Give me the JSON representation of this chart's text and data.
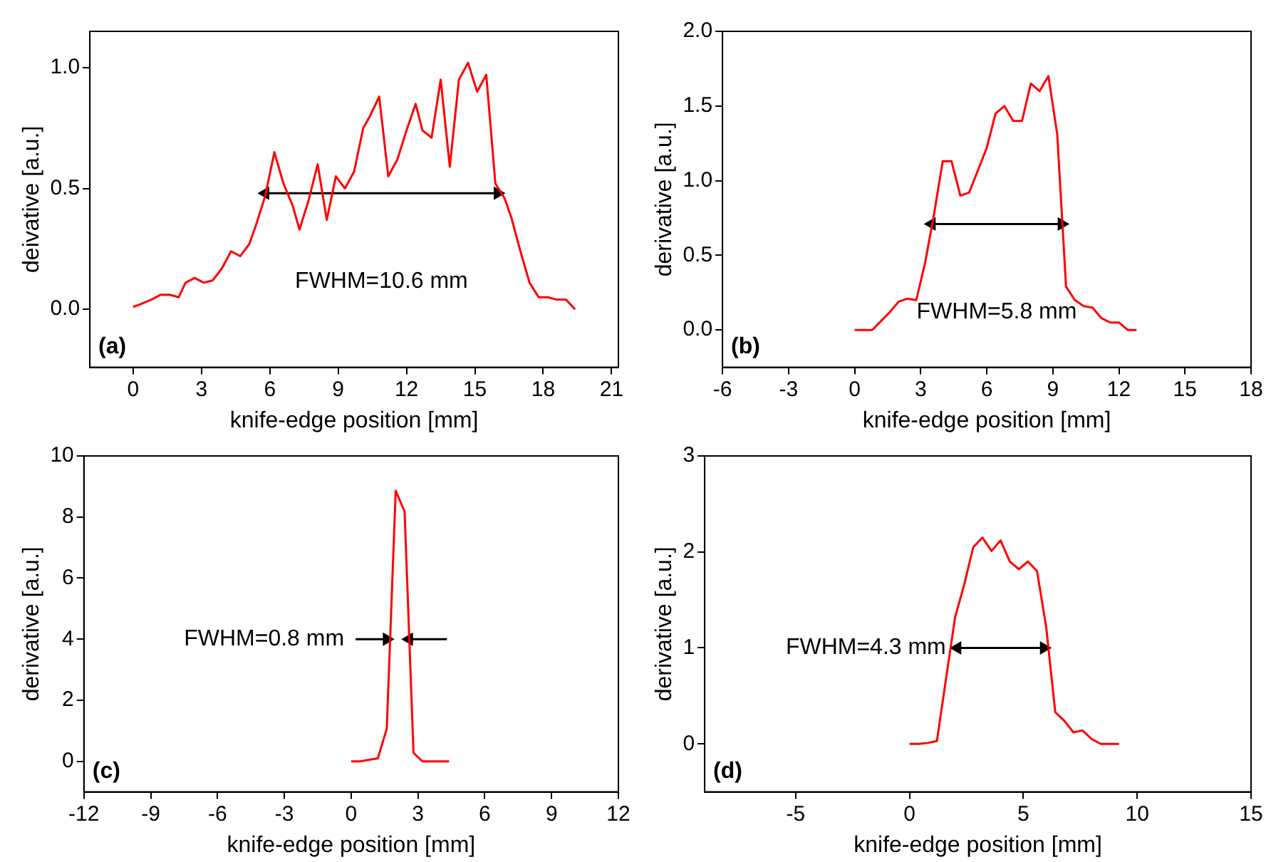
{
  "chart_data": [
    {
      "type": "line",
      "xlabel": "knife-edge position [mm]",
      "ylabel": "deivative [a.u.]",
      "xlim": [
        -1.9,
        21.3
      ],
      "ylim": [
        -0.24,
        1.15
      ],
      "xticks": [
        0,
        3,
        6,
        9,
        12,
        15,
        18,
        21
      ],
      "yticks": [
        {
          "value": 0,
          "label": "0.0"
        },
        {
          "value": 0.5,
          "label": "0.5"
        },
        {
          "value": 1,
          "label": "1.0"
        }
      ],
      "grid": false,
      "annotations": [
        "(a)",
        "FWHM=10.6 mm"
      ],
      "series": [
        {
          "color": "#ff0000",
          "x": [
            0,
            0.3,
            0.8,
            1.2,
            1.6,
            2.0,
            2.3,
            2.7,
            3.1,
            3.5,
            3.9,
            4.3,
            4.7,
            5.1,
            5.4,
            5.8,
            6.2,
            6.6,
            7.0,
            7.3,
            7.7,
            8.1,
            8.5,
            8.9,
            9.3,
            9.7,
            10.1,
            10.4,
            10.8,
            11.2,
            11.6,
            12.0,
            12.4,
            12.7,
            13.1,
            13.5,
            13.9,
            14.3,
            14.7,
            15.1,
            15.5,
            15.9,
            16.3,
            16.6,
            17.0,
            17.4,
            17.8,
            18.2,
            18.6,
            19.0,
            19.4
          ],
          "values": [
            0.01,
            0.02,
            0.04,
            0.06,
            0.06,
            0.05,
            0.11,
            0.13,
            0.11,
            0.12,
            0.17,
            0.24,
            0.22,
            0.27,
            0.35,
            0.47,
            0.65,
            0.52,
            0.43,
            0.33,
            0.45,
            0.6,
            0.37,
            0.55,
            0.5,
            0.57,
            0.75,
            0.8,
            0.88,
            0.55,
            0.62,
            0.74,
            0.85,
            0.74,
            0.71,
            0.95,
            0.59,
            0.95,
            1.02,
            0.9,
            0.97,
            0.52,
            0.46,
            0.38,
            0.24,
            0.11,
            0.05,
            0.05,
            0.04,
            0.04,
            0.0
          ]
        },
        {
          "color": "#000000",
          "marker": "triangle",
          "x": [
            5.8,
            16.0
          ],
          "values": [
            0.48,
            0.48
          ]
        }
      ]
    },
    {
      "type": "line",
      "xlabel": "knife-edge position [mm]",
      "ylabel": "derivative [a.u.]",
      "xlim": [
        -6,
        18
      ],
      "ylim": [
        -0.25,
        2.0
      ],
      "xticks": [
        -6,
        -3,
        0,
        3,
        6,
        9,
        12,
        15,
        18
      ],
      "yticks": [
        {
          "value": 0,
          "label": "0.0"
        },
        {
          "value": 0.5,
          "label": "0.5"
        },
        {
          "value": 1,
          "label": "1.0"
        },
        {
          "value": 1.5,
          "label": "1.5"
        },
        {
          "value": 2,
          "label": "2.0"
        }
      ],
      "grid": false,
      "annotations": [
        "(b)",
        "FWHM=5.8 mm"
      ],
      "series": [
        {
          "color": "#ff0000",
          "x": [
            0,
            0.4,
            0.8,
            1.2,
            1.6,
            2.0,
            2.4,
            2.8,
            3.2,
            3.6,
            4.0,
            4.4,
            4.8,
            5.2,
            5.6,
            6.0,
            6.4,
            6.8,
            7.2,
            7.6,
            8.0,
            8.4,
            8.8,
            9.2,
            9.6,
            10.0,
            10.4,
            10.8,
            11.2,
            11.6,
            12.0,
            12.4,
            12.8
          ],
          "values": [
            0,
            0,
            0,
            0.06,
            0.12,
            0.19,
            0.21,
            0.2,
            0.45,
            0.77,
            1.13,
            1.13,
            0.9,
            0.92,
            1.07,
            1.22,
            1.45,
            1.5,
            1.4,
            1.4,
            1.65,
            1.6,
            1.7,
            1.31,
            0.29,
            0.2,
            0.16,
            0.15,
            0.08,
            0.05,
            0.05,
            0,
            0
          ]
        },
        {
          "color": "#000000",
          "marker": "triangle",
          "x": [
            3.5,
            9.4
          ],
          "values": [
            0.71,
            0.71
          ]
        }
      ]
    },
    {
      "type": "line",
      "xlabel": "knife-edge position [mm]",
      "ylabel": "derivative [a.u.]",
      "xlim": [
        -12,
        12
      ],
      "ylim": [
        -1,
        10
      ],
      "xticks": [
        -12,
        -9,
        -6,
        -3,
        0,
        3,
        6,
        9,
        12
      ],
      "yticks": [
        0,
        2,
        4,
        6,
        8,
        10
      ],
      "grid": false,
      "annotations": [
        "(c)",
        "FWHM=0.8 mm"
      ],
      "series": [
        {
          "color": "#ff0000",
          "x": [
            0,
            0.4,
            0.8,
            1.2,
            1.6,
            2.0,
            2.4,
            2.8,
            3.2,
            3.6,
            4.0,
            4.4
          ],
          "values": [
            0,
            0,
            0.05,
            0.1,
            1.07,
            8.86,
            8.18,
            0.28,
            0,
            0,
            0,
            0
          ]
        },
        {
          "color": "#000000",
          "marker": "triangle",
          "x": [
            0.2,
            1.6,
            null,
            2.6,
            4.3
          ],
          "values": [
            4,
            4,
            null,
            4,
            4
          ]
        }
      ]
    },
    {
      "type": "line",
      "xlabel": "knife-edge position [mm]",
      "ylabel": "derivative [a.u.]",
      "xlim": [
        -9,
        15
      ],
      "ylim": [
        -0.5,
        3
      ],
      "xticks": [
        -5,
        0,
        5,
        10,
        15
      ],
      "yticks": [
        0,
        1,
        2,
        3
      ],
      "grid": false,
      "annotations": [
        "(d)",
        "FWHM=4.3 mm"
      ],
      "series": [
        {
          "color": "#ff0000",
          "x": [
            0,
            0.4,
            0.8,
            1.2,
            2.0,
            2.4,
            2.8,
            3.2,
            3.6,
            4.0,
            4.4,
            4.8,
            5.2,
            5.6,
            6.0,
            6.4,
            6.8,
            7.2,
            7.6,
            8.0,
            8.4,
            8.8,
            9.2
          ],
          "values": [
            0,
            0,
            0.01,
            0.03,
            1.32,
            1.66,
            2.05,
            2.15,
            2.01,
            2.12,
            1.9,
            1.82,
            1.9,
            1.8,
            1.22,
            0.33,
            0.24,
            0.12,
            0.14,
            0.05,
            0,
            0,
            0
          ]
        },
        {
          "color": "#000000",
          "marker": "triangle",
          "x": [
            2.1,
            5.9
          ],
          "values": [
            1.0,
            1.0
          ]
        }
      ]
    }
  ]
}
